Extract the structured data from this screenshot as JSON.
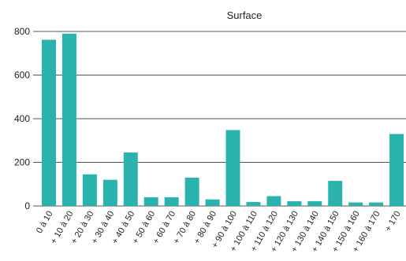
{
  "chart_data": {
    "type": "bar",
    "title": "Surface",
    "xlabel": "",
    "ylabel": "",
    "categories": [
      "0 à 10",
      "+ 10 à 20",
      "+ 20 à 30",
      "+ 30 à 40",
      "+ 40 à 50",
      "+ 50 à 60",
      "+ 60 à 70",
      "+ 70 à 80",
      "+ 80 à 90",
      "+ 90 à 100",
      "+ 100 à 110",
      "+ 110 à 120",
      "+ 120 à 130",
      "+ 130 à 140",
      "+ 140 à 150",
      "+ 150 à 160",
      "+ 160 à 170",
      "+ 170"
    ],
    "values": [
      762,
      790,
      145,
      120,
      245,
      40,
      40,
      130,
      30,
      348,
      18,
      45,
      22,
      22,
      115,
      16,
      16,
      330
    ],
    "ylim": [
      0,
      800
    ],
    "yticks": [
      0,
      200,
      400,
      600,
      800
    ],
    "grid": true,
    "bar_color": "#2ab3ae"
  }
}
